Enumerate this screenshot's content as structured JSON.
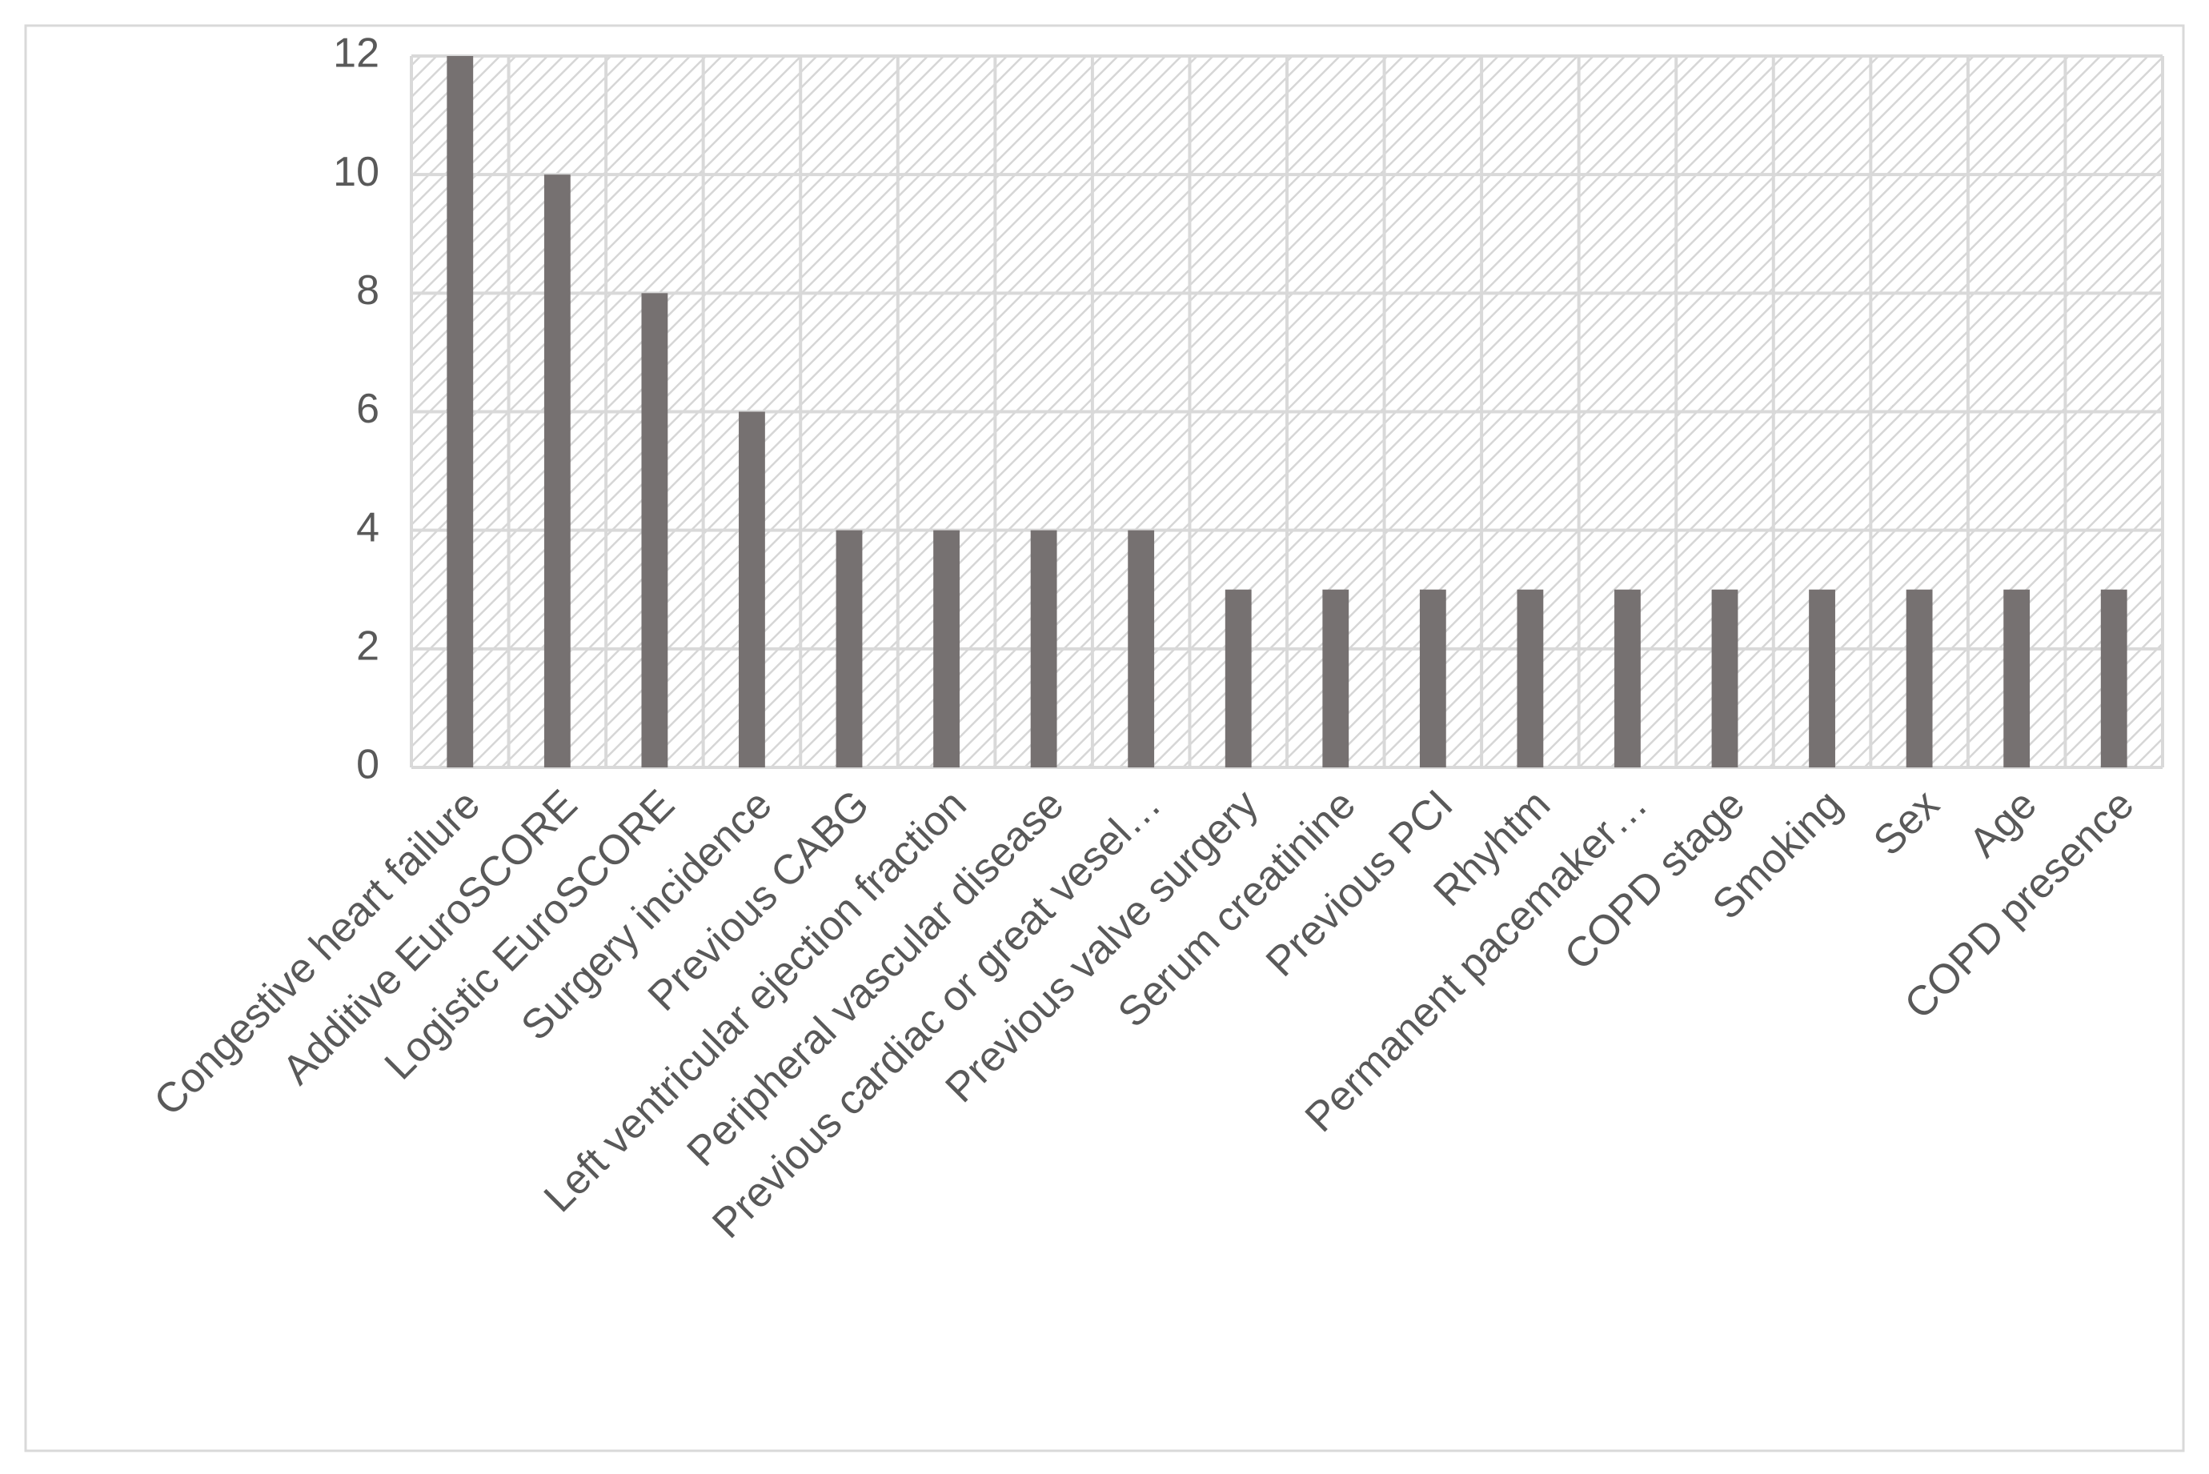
{
  "chart_data": {
    "type": "bar",
    "categories": [
      "Congestive heart failure",
      "Additive EuroSCORE",
      "Logistic EuroSCORE",
      "Surgery incidence",
      "Previous CABG",
      "Left ventricular ejection fraction",
      "Peripheral vascular disease",
      "Previous cardiac or great vesel…",
      "Previous valve surgery",
      "Serum creatinine",
      "Previous PCI",
      "Rhyhtm",
      "Permanent pacemaker…",
      "COPD stage",
      "Smoking",
      "Sex",
      "Age",
      "COPD presence"
    ],
    "values": [
      12,
      10,
      8,
      6,
      4,
      4,
      4,
      4,
      3,
      3,
      3,
      3,
      3,
      3,
      3,
      3,
      3,
      3
    ],
    "color": "#767171",
    "ylim": [
      0,
      12
    ],
    "yticks": [
      0,
      2,
      4,
      6,
      8,
      10,
      12
    ],
    "grid": true
  }
}
